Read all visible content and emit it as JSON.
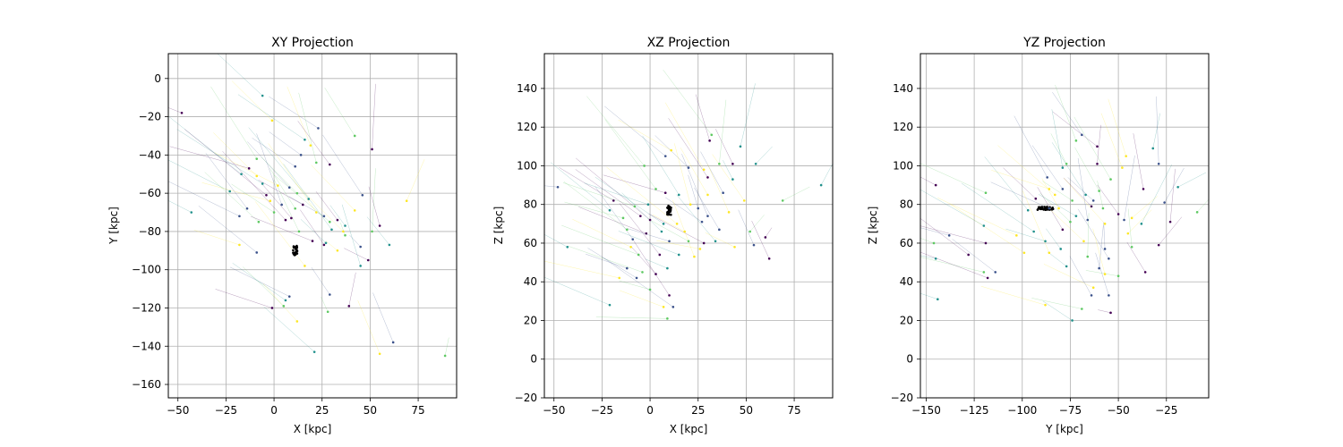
{
  "colors": {
    "grid": "#b0b0b0",
    "orbit_palette": [
      "#440154",
      "#3b528b",
      "#21918c",
      "#5ec962",
      "#fde725"
    ],
    "object": "#000000"
  },
  "chart_data": [
    {
      "type": "scatter",
      "title": "XY Projection",
      "xlabel": "X [kpc]",
      "ylabel": "Y [kpc]",
      "xlim": [
        -55,
        95
      ],
      "ylim": [
        -167,
        13
      ],
      "xticks": [
        -50,
        -25,
        0,
        25,
        50,
        75
      ],
      "yticks": [
        -160,
        -140,
        -120,
        -100,
        -80,
        -60,
        -40,
        -20,
        0
      ],
      "grid": true,
      "points": [
        [
          -48,
          -18
        ],
        [
          -6,
          -9
        ],
        [
          -1,
          -22
        ],
        [
          23,
          -26
        ],
        [
          42,
          -30
        ],
        [
          51,
          -37
        ],
        [
          16,
          -32
        ],
        [
          19,
          -35
        ],
        [
          14,
          -40
        ],
        [
          -9,
          -42
        ],
        [
          -13,
          -47
        ],
        [
          -17,
          -50
        ],
        [
          -9,
          -51
        ],
        [
          11,
          -46
        ],
        [
          22,
          -44
        ],
        [
          29,
          -45
        ],
        [
          -6,
          -55
        ],
        [
          2,
          -56
        ],
        [
          8,
          -57
        ],
        [
          12,
          -60
        ],
        [
          -4,
          -61
        ],
        [
          -23,
          -59
        ],
        [
          -2,
          -64
        ],
        [
          4,
          -66
        ],
        [
          11,
          -68
        ],
        [
          15,
          -66
        ],
        [
          18,
          -63
        ],
        [
          22,
          -70
        ],
        [
          26,
          -72
        ],
        [
          29,
          -75
        ],
        [
          33,
          -74
        ],
        [
          37,
          -77
        ],
        [
          42,
          -69
        ],
        [
          46,
          -61
        ],
        [
          51,
          -80
        ],
        [
          55,
          -77
        ],
        [
          60,
          -87
        ],
        [
          69,
          -64
        ],
        [
          -18,
          -72
        ],
        [
          -8,
          -75
        ],
        [
          6,
          -74
        ],
        [
          -43,
          -70
        ],
        [
          -18,
          -87
        ],
        [
          -9,
          -91
        ],
        [
          13,
          -80
        ],
        [
          20,
          -85
        ],
        [
          27,
          -86
        ],
        [
          33,
          -90
        ],
        [
          45,
          -88
        ],
        [
          37,
          -82
        ],
        [
          49,
          -95
        ],
        [
          45,
          -98
        ],
        [
          16,
          -98
        ],
        [
          8,
          -114
        ],
        [
          5,
          -119
        ],
        [
          -1,
          -120
        ],
        [
          6,
          -116
        ],
        [
          12,
          -127
        ],
        [
          29,
          -113
        ],
        [
          28,
          -122
        ],
        [
          39,
          -119
        ],
        [
          21,
          -143
        ],
        [
          55,
          -144
        ],
        [
          62,
          -138
        ],
        [
          89,
          -145
        ],
        [
          26,
          -87
        ],
        [
          30,
          -79
        ],
        [
          36,
          -80
        ],
        [
          -14,
          -68
        ],
        [
          0,
          -70
        ],
        [
          9,
          -73
        ]
      ],
      "cluster_center": [
        11,
        -90
      ]
    },
    {
      "type": "scatter",
      "title": "XZ Projection",
      "xlabel": "X [kpc]",
      "ylabel": "Z [kpc]",
      "xlim": [
        -55,
        95
      ],
      "ylim": [
        -20,
        158
      ],
      "xticks": [
        -50,
        -25,
        0,
        25,
        50,
        75
      ],
      "yticks": [
        -20,
        0,
        20,
        40,
        60,
        80,
        100,
        120,
        140
      ],
      "grid": true,
      "points": [
        [
          32,
          116
        ],
        [
          31,
          113
        ],
        [
          47,
          110
        ],
        [
          11,
          108
        ],
        [
          8,
          105
        ],
        [
          36,
          101
        ],
        [
          43,
          101
        ],
        [
          55,
          101
        ],
        [
          28,
          98
        ],
        [
          20,
          99
        ],
        [
          -3,
          100
        ],
        [
          30,
          94
        ],
        [
          43,
          93
        ],
        [
          49,
          82
        ],
        [
          -48,
          89
        ],
        [
          3,
          88
        ],
        [
          8,
          86
        ],
        [
          15,
          85
        ],
        [
          30,
          85
        ],
        [
          38,
          86
        ],
        [
          69,
          82
        ],
        [
          -19,
          82
        ],
        [
          -1,
          80
        ],
        [
          21,
          80
        ],
        [
          25,
          78
        ],
        [
          -8,
          79
        ],
        [
          -5,
          74
        ],
        [
          -21,
          77
        ],
        [
          41,
          76
        ],
        [
          30,
          74
        ],
        [
          -14,
          73
        ],
        [
          0,
          72
        ],
        [
          7,
          70
        ],
        [
          14,
          70
        ],
        [
          27,
          71
        ],
        [
          -12,
          67
        ],
        [
          -2,
          65
        ],
        [
          6,
          66
        ],
        [
          18,
          66
        ],
        [
          36,
          67
        ],
        [
          52,
          66
        ],
        [
          60,
          63
        ],
        [
          -43,
          58
        ],
        [
          -10,
          58
        ],
        [
          10,
          61
        ],
        [
          20,
          61
        ],
        [
          28,
          60
        ],
        [
          34,
          61
        ],
        [
          44,
          58
        ],
        [
          54,
          59
        ],
        [
          -6,
          54
        ],
        [
          5,
          54
        ],
        [
          15,
          54
        ],
        [
          23,
          53
        ],
        [
          -12,
          47
        ],
        [
          -4,
          45
        ],
        [
          3,
          44
        ],
        [
          9,
          47
        ],
        [
          -16,
          42
        ],
        [
          -7,
          42
        ],
        [
          0,
          36
        ],
        [
          10,
          33
        ],
        [
          -21,
          28
        ],
        [
          7,
          27
        ],
        [
          12,
          27
        ],
        [
          9,
          21
        ],
        [
          62,
          52
        ],
        [
          89,
          90
        ],
        [
          26,
          57
        ],
        [
          -9,
          62
        ]
      ],
      "cluster_center": [
        10,
        77
      ]
    },
    {
      "type": "scatter",
      "title": "YZ Projection",
      "xlabel": "Y [kpc]",
      "ylabel": "Z [kpc]",
      "xlim": [
        -153,
        -3
      ],
      "ylim": [
        -20,
        158
      ],
      "xticks": [
        -150,
        -125,
        -100,
        -75,
        -50,
        -25
      ],
      "yticks": [
        -20,
        0,
        20,
        40,
        60,
        80,
        100,
        120,
        140
      ],
      "grid": true,
      "points": [
        [
          -69,
          116
        ],
        [
          -72,
          113
        ],
        [
          -61,
          110
        ],
        [
          -32,
          109
        ],
        [
          -46,
          105
        ],
        [
          -29,
          101
        ],
        [
          -77,
          101
        ],
        [
          -61,
          101
        ],
        [
          -79,
          99
        ],
        [
          -48,
          99
        ],
        [
          -87,
          94
        ],
        [
          -54,
          93
        ],
        [
          -37,
          88
        ],
        [
          -19,
          89
        ],
        [
          -86,
          88
        ],
        [
          -79,
          88
        ],
        [
          -60,
          87
        ],
        [
          -93,
          83
        ],
        [
          -67,
          85
        ],
        [
          -83,
          85
        ],
        [
          -63,
          82
        ],
        [
          -74,
          82
        ],
        [
          -64,
          79
        ],
        [
          -97,
          77
        ],
        [
          -81,
          78
        ],
        [
          -86,
          78
        ],
        [
          -58,
          78
        ],
        [
          -50,
          75
        ],
        [
          -72,
          74
        ],
        [
          -43,
          73
        ],
        [
          -47,
          72
        ],
        [
          -9,
          76
        ],
        [
          -23,
          71
        ],
        [
          -38,
          70
        ],
        [
          -57,
          70
        ],
        [
          -66,
          72
        ],
        [
          -75,
          71
        ],
        [
          -79,
          67
        ],
        [
          -94,
          66
        ],
        [
          -103,
          64
        ],
        [
          -138,
          64
        ],
        [
          -146,
          60
        ],
        [
          -119,
          60
        ],
        [
          -88,
          61
        ],
        [
          -68,
          61
        ],
        [
          -57,
          57
        ],
        [
          -43,
          58
        ],
        [
          -29,
          59
        ],
        [
          -80,
          57
        ],
        [
          -86,
          55
        ],
        [
          -55,
          52
        ],
        [
          -66,
          53
        ],
        [
          -128,
          54
        ],
        [
          -145,
          52
        ],
        [
          -99,
          55
        ],
        [
          -114,
          45
        ],
        [
          -120,
          45
        ],
        [
          -118,
          42
        ],
        [
          -77,
          48
        ],
        [
          -57,
          44
        ],
        [
          -60,
          47
        ],
        [
          -50,
          43
        ],
        [
          -36,
          45
        ],
        [
          -144,
          31
        ],
        [
          -63,
          37
        ],
        [
          -64,
          33
        ],
        [
          -69,
          26
        ],
        [
          -54,
          24
        ],
        [
          -74,
          20
        ],
        [
          -88,
          28
        ],
        [
          -55,
          33
        ],
        [
          -119,
          86
        ],
        [
          -145,
          90
        ],
        [
          -120,
          69
        ],
        [
          -45,
          65
        ],
        [
          -26,
          81
        ]
      ],
      "cluster_center": [
        -88,
        78
      ]
    }
  ]
}
